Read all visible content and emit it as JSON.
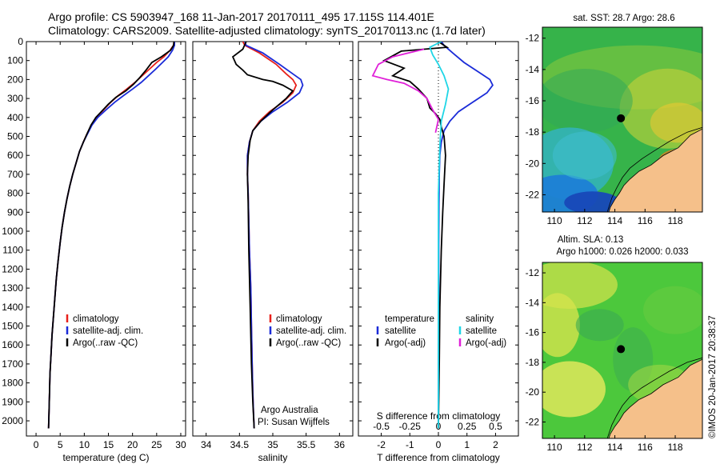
{
  "titles": {
    "line1": "Argo profile: CS 5903947_168 11-Jan-2017 20170111_495 17.115S 114.401E",
    "line2": "Climatology: CARS2009. Satellite-adjusted climatology: synTS_20170113.nc (1.7d later)"
  },
  "legend_profile": {
    "items": [
      "climatology",
      "satellite-adj. clim.",
      "Argo(..raw -QC)"
    ],
    "colors": [
      "#e8201a",
      "#1a2bd8",
      "#000000"
    ]
  },
  "legend_diff": {
    "temp_head": "temperature",
    "sal_head": "salinity",
    "temp_items": [
      "satellite",
      "Argo(-adj)"
    ],
    "sal_items": [
      "satellite",
      "Argo(-adj)"
    ],
    "colors": {
      "t_sat": "#1a2bd8",
      "t_argo": "#000000",
      "s_sat": "#1fd6e6",
      "s_argo": "#e020d8"
    }
  },
  "annotation": {
    "line1": "Argo Australia",
    "line2": "PI: Susan Wijffels"
  },
  "maps": {
    "sst_title": "sat. SST: 28.7  Argo: 28.6",
    "sla_title1": "Altim. SLA: 0.13",
    "sla_title2": "Argo h1000: 0.026 h2000: 0.033",
    "y_ticks": [
      "-12",
      "-14",
      "-16",
      "-18",
      "-20",
      "-22"
    ],
    "x_ticks": [
      "110",
      "112",
      "114",
      "116",
      "118"
    ],
    "lon_range": [
      109.2,
      119.8
    ],
    "lat_range": [
      -23.1,
      -11.3
    ],
    "marker": {
      "lon": 114.401,
      "lat": -17.115
    },
    "land_color": "#f5c08a"
  },
  "credit": "©IMOS 20-Jan-2017 20:38:37",
  "chart_data": [
    {
      "type": "line",
      "title": "",
      "xlabel": "temperature (deg C)",
      "ylabel": "",
      "xlim": [
        -2,
        31
      ],
      "ylim": [
        2080,
        0
      ],
      "xticks": [
        0,
        5,
        10,
        15,
        20,
        25,
        30
      ],
      "yticks": [
        0,
        100,
        200,
        300,
        400,
        500,
        600,
        700,
        800,
        900,
        1000,
        1100,
        1200,
        1300,
        1400,
        1500,
        1600,
        1700,
        1800,
        1900,
        2000
      ],
      "series": [
        {
          "name": "climatology",
          "color": "#e8201a",
          "x": [
            28.6,
            28.5,
            27.8,
            26.5,
            25.0,
            23.5,
            22.0,
            20.5,
            18.8,
            17.0,
            15.5,
            14.0,
            12.5,
            11.5,
            10.5,
            9.8,
            9.0,
            8.3,
            7.6,
            7.0,
            6.4,
            5.9,
            5.4,
            5.0,
            4.6,
            4.2,
            3.9,
            3.6,
            3.3,
            3.1,
            2.9,
            2.8,
            2.7,
            2.6
          ],
          "y": [
            0,
            20,
            45,
            80,
            110,
            145,
            180,
            215,
            250,
            285,
            320,
            360,
            400,
            440,
            490,
            530,
            580,
            640,
            700,
            760,
            830,
            900,
            980,
            1060,
            1150,
            1250,
            1350,
            1450,
            1550,
            1650,
            1750,
            1850,
            1950,
            2040
          ]
        },
        {
          "name": "satellite-adj. clim.",
          "color": "#1a2bd8",
          "x": [
            28.7,
            28.7,
            28.3,
            27.4,
            26.2,
            24.8,
            23.3,
            21.8,
            20.0,
            18.1,
            16.3,
            14.5,
            12.8,
            11.6,
            10.6,
            9.8,
            9.0,
            8.3,
            7.6,
            7.0,
            6.4,
            5.9,
            5.4,
            5.0,
            4.6,
            4.2,
            3.9,
            3.6,
            3.3,
            3.1,
            2.9,
            2.8,
            2.7,
            2.6
          ],
          "y": [
            0,
            20,
            45,
            80,
            110,
            145,
            180,
            215,
            250,
            285,
            320,
            360,
            400,
            440,
            490,
            530,
            580,
            640,
            700,
            760,
            830,
            900,
            980,
            1060,
            1150,
            1250,
            1350,
            1450,
            1550,
            1650,
            1750,
            1850,
            1950,
            2040
          ]
        },
        {
          "name": "Argo(..raw -QC)",
          "color": "#000000",
          "x": [
            28.6,
            28.5,
            27.9,
            26.0,
            24.0,
            22.8,
            21.5,
            20.2,
            18.6,
            16.5,
            15.0,
            13.7,
            12.4,
            11.4,
            10.5,
            9.8,
            9.0,
            8.3,
            7.6,
            7.0,
            6.4,
            5.9,
            5.4,
            5.0,
            4.6,
            4.2,
            3.9,
            3.6,
            3.3,
            3.1,
            2.9,
            2.8,
            2.7,
            2.6
          ],
          "y": [
            0,
            20,
            45,
            80,
            110,
            150,
            190,
            225,
            260,
            295,
            330,
            365,
            400,
            440,
            490,
            530,
            580,
            640,
            700,
            760,
            830,
            900,
            980,
            1060,
            1150,
            1250,
            1350,
            1450,
            1550,
            1650,
            1750,
            1850,
            1950,
            2040
          ]
        }
      ]
    },
    {
      "type": "line",
      "title": "",
      "xlabel": "salinity",
      "ylabel": "",
      "xlim": [
        33.8,
        36.2
      ],
      "ylim": [
        2080,
        0
      ],
      "xticks": [
        34,
        34.5,
        35,
        35.5,
        36
      ],
      "series": [
        {
          "name": "climatology",
          "color": "#e8201a",
          "x": [
            34.55,
            34.58,
            34.8,
            35.05,
            35.2,
            35.3,
            35.35,
            35.3,
            35.15,
            34.95,
            34.8,
            34.7,
            34.65,
            34.62,
            34.62,
            34.63,
            34.64,
            34.65,
            34.67,
            34.68,
            34.69,
            34.7,
            34.71,
            34.72
          ],
          "y": [
            0,
            20,
            60,
            120,
            170,
            200,
            230,
            270,
            320,
            370,
            420,
            470,
            530,
            600,
            700,
            800,
            950,
            1100,
            1300,
            1500,
            1700,
            1850,
            1950,
            2040
          ]
        },
        {
          "name": "satellite-adj. clim.",
          "color": "#1a2bd8",
          "x": [
            34.58,
            34.6,
            34.85,
            35.1,
            35.3,
            35.42,
            35.45,
            35.4,
            35.22,
            35.0,
            34.82,
            34.7,
            34.65,
            34.62,
            34.62,
            34.63,
            34.64,
            34.65,
            34.67,
            34.68,
            34.69,
            34.7,
            34.71,
            34.72
          ],
          "y": [
            0,
            20,
            60,
            120,
            170,
            200,
            230,
            270,
            320,
            370,
            420,
            470,
            530,
            600,
            700,
            800,
            950,
            1100,
            1300,
            1500,
            1700,
            1850,
            1950,
            2040
          ]
        },
        {
          "name": "Argo(..raw -QC)",
          "color": "#000000",
          "x": [
            34.6,
            34.55,
            34.4,
            34.45,
            34.55,
            34.62,
            34.85,
            35.0,
            35.15,
            35.3,
            35.2,
            35.0,
            34.82,
            34.7,
            34.66,
            34.63,
            34.62,
            34.63,
            34.64,
            34.66,
            34.68,
            34.7,
            34.72
          ],
          "y": [
            0,
            40,
            80,
            120,
            150,
            175,
            200,
            210,
            230,
            260,
            300,
            360,
            420,
            470,
            520,
            600,
            700,
            850,
            1100,
            1400,
            1700,
            1900,
            2040
          ]
        }
      ]
    },
    {
      "type": "line",
      "title": "",
      "xlabel": "T difference from climatology",
      "x2label": "S difference from climatology",
      "xlim": [
        -2.8,
        2.8
      ],
      "ylim": [
        2080,
        0
      ],
      "xticks": [
        -2,
        -1,
        0,
        1,
        2
      ],
      "x2ticks": [
        "-0.5",
        "-0.25",
        "0",
        "0.25",
        "0.5"
      ],
      "series": [
        {
          "name": "T satellite",
          "color": "#1a2bd8",
          "x": [
            0.1,
            0.2,
            0.5,
            0.9,
            1.4,
            1.8,
            1.9,
            1.7,
            1.2,
            0.7,
            0.4,
            0.2,
            0.1,
            0.05,
            0.03,
            0.02,
            0.01,
            0.01,
            0.0,
            0.0
          ],
          "y": [
            0,
            20,
            60,
            110,
            160,
            200,
            230,
            270,
            320,
            370,
            420,
            470,
            530,
            600,
            700,
            850,
            1100,
            1400,
            1700,
            2040
          ]
        },
        {
          "name": "T Argo(-adj)",
          "color": "#000000",
          "x": [
            0.0,
            0.3,
            -1.3,
            -1.9,
            -1.2,
            -1.6,
            -1.0,
            -0.7,
            -0.4,
            -0.3,
            -0.1,
            0.05,
            0.1,
            0.2,
            0.25,
            0.2,
            0.15,
            0.1,
            0.05,
            0.03,
            0.0
          ],
          "y": [
            0,
            30,
            50,
            100,
            140,
            180,
            210,
            250,
            300,
            350,
            380,
            410,
            450,
            500,
            600,
            750,
            900,
            1100,
            1400,
            1700,
            2040
          ]
        },
        {
          "name": "S satellite",
          "color": "#1fd6e6",
          "x": [
            0.1,
            -0.3,
            -0.2,
            0.0,
            0.2,
            0.35,
            0.25,
            0.1,
            0.05,
            0.0,
            0.0,
            0.0,
            0.0
          ],
          "y": [
            0,
            30,
            70,
            120,
            180,
            250,
            330,
            420,
            550,
            800,
            1200,
            1700,
            2040
          ]
        },
        {
          "name": "S Argo(-adj)",
          "color": "#e020d8",
          "x": [
            -0.5,
            -1.6,
            -2.1,
            -2.3,
            -1.8,
            -1.2,
            -0.7,
            -0.4,
            -0.2,
            0.0,
            -0.1
          ],
          "y": [
            40,
            80,
            120,
            180,
            200,
            220,
            260,
            300,
            360,
            410,
            480
          ]
        }
      ]
    }
  ]
}
